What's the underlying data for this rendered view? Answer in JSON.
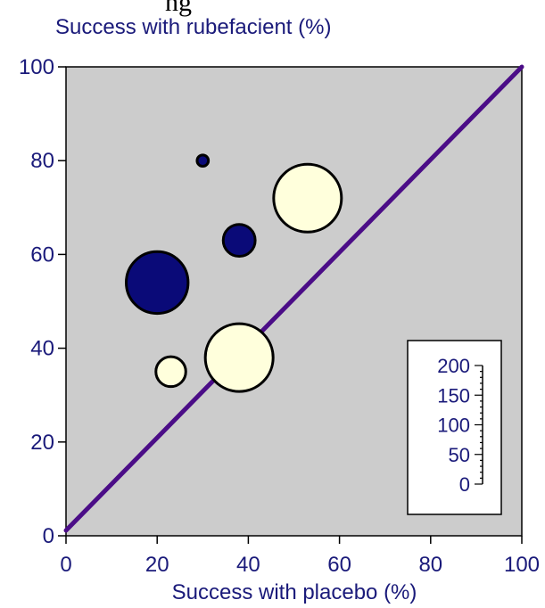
{
  "top_partial_text": "ng",
  "chart_data": {
    "type": "scatter",
    "subtype": "bubble",
    "xlabel": "Success with placebo (%)",
    "ylabel": "Success with rubefacient (%)",
    "xlim": [
      0,
      100
    ],
    "ylim": [
      0,
      100
    ],
    "x_ticks": [
      "0",
      "20",
      "40",
      "60",
      "80",
      "100"
    ],
    "y_ticks": [
      "0",
      "20",
      "40",
      "60",
      "80",
      "100"
    ],
    "grid": false,
    "plot_background": "#cccccc",
    "line_of_equality": {
      "x": [
        0,
        100
      ],
      "y": [
        0,
        100
      ],
      "color": "#4b0d87"
    },
    "points": [
      {
        "x": 30,
        "y": 80,
        "size": 5,
        "fill": "#0a0a78"
      },
      {
        "x": 38,
        "y": 63,
        "size": 40,
        "fill": "#0a0a78"
      },
      {
        "x": 20,
        "y": 54,
        "size": 150,
        "fill": "#0a0a78"
      },
      {
        "x": 53,
        "y": 72,
        "size": 180,
        "fill": "#ffffdc"
      },
      {
        "x": 38,
        "y": 38,
        "size": 180,
        "fill": "#ffffdc"
      },
      {
        "x": 23,
        "y": 35,
        "size": 35,
        "fill": "#ffffdc"
      }
    ],
    "size_legend": {
      "ticks": [
        "0",
        "50",
        "100",
        "150",
        "200"
      ],
      "values": [
        0,
        50,
        100,
        150,
        200
      ]
    }
  }
}
